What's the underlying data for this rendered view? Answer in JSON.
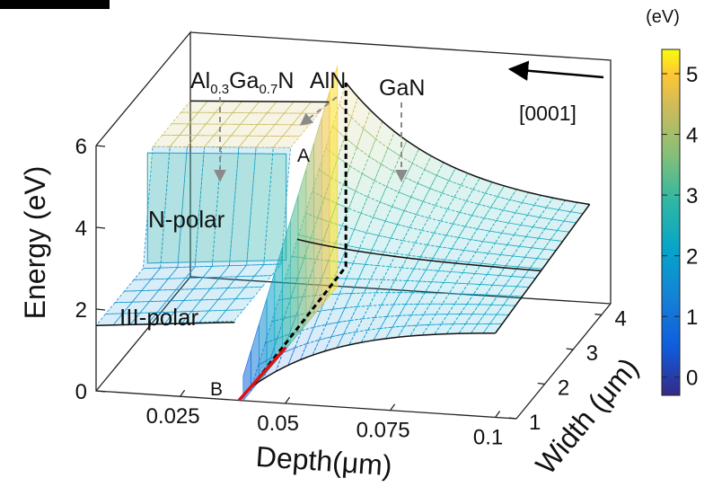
{
  "chart_data": {
    "type": "surface3d",
    "zlabel": "Energy (eV)",
    "xlabel": "Depth(μm)",
    "ylabel": "Width (μm)",
    "z_ticks": [
      "0",
      "2",
      "4",
      "6"
    ],
    "x_ticks": [
      "0.025",
      "0.05",
      "0.075",
      "0.1"
    ],
    "y_ticks": [
      "1",
      "2",
      "3",
      "4"
    ],
    "zlim": [
      0,
      6
    ],
    "xlim": [
      0.005,
      0.105
    ],
    "ylim": [
      1,
      4.3
    ],
    "colorbar": {
      "unit": "(eV)",
      "ticks": [
        "5",
        "4",
        "3",
        "2",
        "1",
        "0"
      ],
      "range": [
        -0.3,
        5.4
      ],
      "colormap": "parula"
    },
    "annotations": {
      "algan_base1": "Al",
      "algan_sub1": "0.3",
      "algan_base2": "Ga",
      "algan_sub2": "0.7",
      "algan_base3": "N",
      "aln": "AlN",
      "gan": "GaN",
      "direction": "[0001]",
      "n_polar": "N-polar",
      "iii_polar": "III-polar",
      "point_a": "A",
      "point_b": "B"
    },
    "series": [
      {
        "region": "AlGaN",
        "depth": [
          0.005,
          0.038
        ],
        "n_polar_energy": [
          4.3,
          4.6
        ],
        "iii_polar_energy": [
          1.6,
          2.6
        ]
      },
      {
        "region": "AlN",
        "depth": [
          0.038,
          0.042
        ],
        "energy_max": 5.4,
        "energy_min": 0.0
      },
      {
        "region": "GaN",
        "depth": [
          0.042,
          0.1
        ],
        "peak_energy": 5.0,
        "end_energy": 2.2
      }
    ],
    "grid": false
  }
}
